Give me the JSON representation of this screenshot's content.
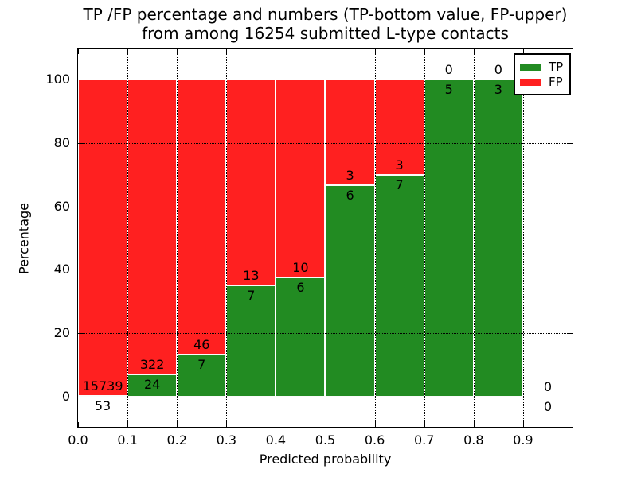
{
  "chart_data": {
    "type": "bar",
    "stacked": true,
    "title_line1": "TP /FP percentage and numbers (TP-bottom value, FP-upper)",
    "title_line2": "from among 16254 submitted L-type contacts",
    "xlabel": "Predicted probability",
    "ylabel": "Percentage",
    "total_submitted_contacts": 16254,
    "xlim": [
      0.0,
      1.0
    ],
    "ylim": [
      -10,
      110
    ],
    "grid": true,
    "xticks": [
      "0.0",
      "0.1",
      "0.2",
      "0.3",
      "0.4",
      "0.5",
      "0.6",
      "0.7",
      "0.8",
      "0.9"
    ],
    "yticks": [
      0,
      20,
      40,
      60,
      80,
      100
    ],
    "colors": {
      "tp": "#228b22",
      "fp": "#ff2020"
    },
    "legend": {
      "position": "upper-right",
      "items": [
        {
          "label": "TP",
          "color_key": "tp"
        },
        {
          "label": "FP",
          "color_key": "fp"
        }
      ]
    },
    "bins": [
      {
        "range": "0.0-0.1",
        "tp": 53,
        "fp": 15739,
        "tp_pct": 0.34
      },
      {
        "range": "0.1-0.2",
        "tp": 24,
        "fp": 322,
        "tp_pct": 6.94
      },
      {
        "range": "0.2-0.3",
        "tp": 7,
        "fp": 46,
        "tp_pct": 13.21
      },
      {
        "range": "0.3-0.4",
        "tp": 7,
        "fp": 13,
        "tp_pct": 35.0
      },
      {
        "range": "0.4-0.5",
        "tp": 6,
        "fp": 10,
        "tp_pct": 37.5
      },
      {
        "range": "0.5-0.6",
        "tp": 6,
        "fp": 3,
        "tp_pct": 66.67
      },
      {
        "range": "0.6-0.7",
        "tp": 7,
        "fp": 3,
        "tp_pct": 70.0
      },
      {
        "range": "0.7-0.8",
        "tp": 5,
        "fp": 0,
        "tp_pct": 100.0
      },
      {
        "range": "0.8-0.9",
        "tp": 3,
        "fp": 0,
        "tp_pct": 100.0
      },
      {
        "range": "0.9-1.0",
        "tp": 0,
        "fp": 0,
        "tp_pct": null
      }
    ]
  }
}
